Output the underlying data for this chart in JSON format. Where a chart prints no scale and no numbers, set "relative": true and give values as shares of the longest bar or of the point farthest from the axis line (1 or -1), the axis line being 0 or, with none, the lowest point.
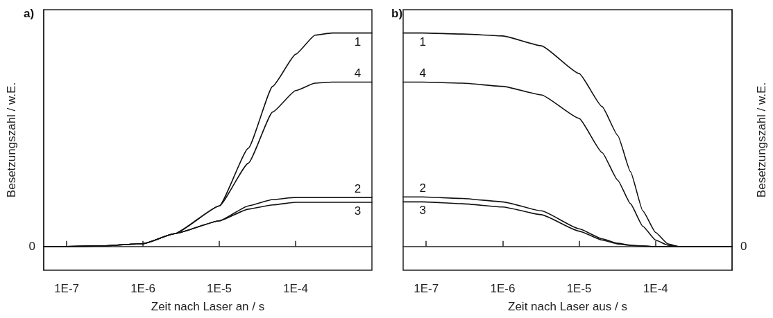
{
  "chart_data": [
    {
      "type": "line",
      "title": "a)",
      "xlabel": "Zeit nach Laser an / s",
      "ylabel": "Besetzungszahl / w.E.",
      "log": "x",
      "relative": true,
      "legend": false,
      "marker": "none",
      "line_style": "solid",
      "grid": false,
      "xlim": [
        5e-08,
        0.001
      ],
      "xticks": [
        {
          "value": 1e-07,
          "label": "1E-7"
        },
        {
          "value": 1e-06,
          "label": "1E-6"
        },
        {
          "value": 1e-05,
          "label": "1E-5"
        },
        {
          "value": 0.0001,
          "label": "1E-4"
        }
      ],
      "annotations": [
        "0"
      ],
      "x": [
        5e-08,
        1e-07,
        3e-07,
        1e-06,
        2.6e-06,
        1e-05,
        2.4e-05,
        5e-05,
        0.0001,
        0.00018,
        0.0003,
        0.00065,
        0.001
      ],
      "series": [
        {
          "name": "1",
          "color": "#111111",
          "values": [
            0,
            0,
            0.003,
            0.013,
            0.06,
            0.19,
            0.46,
            0.75,
            0.9,
            0.99,
            1,
            1,
            1
          ]
        },
        {
          "name": "2",
          "color": "#111111",
          "values": [
            0,
            0,
            0.003,
            0.013,
            0.06,
            0.12,
            0.19,
            0.22,
            0.23,
            0.23,
            0.23,
            0.23,
            0.23
          ]
        },
        {
          "name": "3",
          "color": "#111111",
          "values": [
            0,
            0,
            0.003,
            0.013,
            0.06,
            0.12,
            0.175,
            0.195,
            0.207,
            0.207,
            0.207,
            0.207,
            0.207
          ]
        },
        {
          "name": "4",
          "color": "#111111",
          "values": [
            0,
            0,
            0.003,
            0.013,
            0.06,
            0.19,
            0.39,
            0.63,
            0.73,
            0.765,
            0.77,
            0.77,
            0.77
          ]
        }
      ]
    },
    {
      "type": "line",
      "title": "b)",
      "xlabel": "Zeit nach Laser aus / s",
      "ylabel": "Besetzungszahl / w.E.",
      "log": "x",
      "relative": true,
      "legend": false,
      "marker": "none",
      "line_style": "solid",
      "grid": false,
      "xlim": [
        5e-08,
        0.001
      ],
      "xticks": [
        {
          "value": 1e-07,
          "label": "1E-7"
        },
        {
          "value": 1e-06,
          "label": "1E-6"
        },
        {
          "value": 1e-05,
          "label": "1E-5"
        },
        {
          "value": 0.0001,
          "label": "1E-4"
        }
      ],
      "annotations": [
        "0"
      ],
      "x": [
        5e-08,
        9e-08,
        3e-07,
        1e-06,
        3.2e-06,
        1e-05,
        2e-05,
        3.2e-05,
        4.7e-05,
        6.8e-05,
        0.0001,
        0.000145,
        0.0002,
        0.0003,
        0.001
      ],
      "series": [
        {
          "name": "1",
          "color": "#111111",
          "values": [
            1,
            1,
            0.995,
            0.986,
            0.94,
            0.81,
            0.655,
            0.52,
            0.35,
            0.167,
            0.066,
            0.012,
            0,
            0,
            0
          ]
        },
        {
          "name": "2",
          "color": "#111111",
          "values": [
            0.232,
            0.232,
            0.225,
            0.209,
            0.167,
            0.083,
            0.036,
            0.015,
            0.006,
            0.002,
            0,
            0,
            0,
            0,
            0
          ]
        },
        {
          "name": "3",
          "color": "#111111",
          "values": [
            0.209,
            0.209,
            0.2,
            0.185,
            0.149,
            0.072,
            0.03,
            0.012,
            0.005,
            0.002,
            0,
            0,
            0,
            0,
            0
          ]
        },
        {
          "name": "4",
          "color": "#111111",
          "values": [
            0.77,
            0.77,
            0.765,
            0.75,
            0.71,
            0.6,
            0.44,
            0.31,
            0.2,
            0.095,
            0.03,
            0.006,
            0,
            0,
            0
          ]
        }
      ]
    }
  ]
}
